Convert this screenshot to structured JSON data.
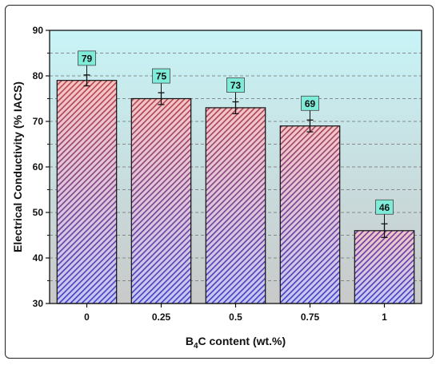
{
  "chart_data": {
    "type": "bar",
    "categories": [
      "0",
      "0.25",
      "0.5",
      "0.75",
      "1"
    ],
    "values": [
      79,
      75,
      73,
      69,
      46
    ],
    "errors": [
      1.2,
      1.3,
      1.3,
      1.3,
      1.5
    ],
    "data_labels": [
      "79",
      "75",
      "73",
      "69",
      "46"
    ],
    "xlabel_prefix": "B",
    "xlabel_sub": "4",
    "xlabel_suffix": "C content (wt.%)",
    "ylabel": "Electrical Conductivity (% IACS)",
    "ylim": [
      30,
      90
    ],
    "yticks": [
      30,
      40,
      50,
      60,
      70,
      80,
      90
    ],
    "ytick_labels": [
      "30",
      "40",
      "50",
      "60",
      "70",
      "80",
      "90"
    ],
    "grid": "horizontal dashed",
    "background_gradient": [
      "#c8f4f7",
      "#c9c9c9"
    ],
    "bar_fill_top": "#f5c4c4",
    "bar_fill_bottom": "#c6c6f3",
    "hatch_top": "#c24444",
    "hatch_bottom": "#3f3fc6",
    "label_box_color": "#7fecd9"
  }
}
